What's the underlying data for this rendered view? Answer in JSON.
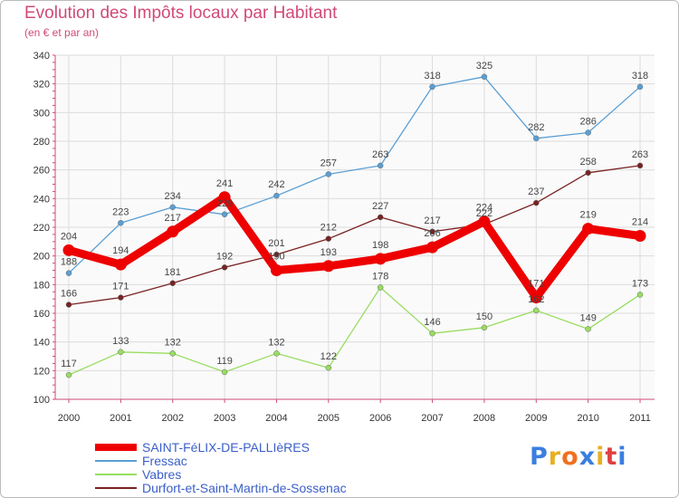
{
  "title": "Evolution des Impôts locaux par Habitant",
  "subtitle": "(en € et par an)",
  "chart_data": {
    "type": "line",
    "x": [
      "2000",
      "2001",
      "2002",
      "2003",
      "2004",
      "2005",
      "2006",
      "2007",
      "2008",
      "2009",
      "2010",
      "2011"
    ],
    "ylim": [
      100,
      340
    ],
    "yticks": [
      100,
      120,
      140,
      160,
      180,
      200,
      220,
      240,
      260,
      280,
      300,
      320,
      340
    ],
    "grid": true,
    "legend_position": "bottom-left",
    "series": [
      {
        "name": "SAINT-FéLIX-DE-PALLIèRES",
        "color": "#ee0000",
        "values": [
          204,
          194,
          217,
          241,
          190,
          193,
          198,
          206,
          224,
          171,
          219,
          214
        ]
      },
      {
        "name": "Fressac",
        "color": "#5a9fd4",
        "values": [
          188,
          223,
          234,
          229,
          242,
          257,
          263,
          318,
          325,
          282,
          286,
          318
        ]
      },
      {
        "name": "Vabres",
        "color": "#98dd60",
        "values": [
          117,
          133,
          132,
          119,
          132,
          122,
          178,
          146,
          150,
          162,
          149,
          173
        ]
      },
      {
        "name": "Durfort-et-Saint-Martin-de-Sossenac",
        "color": "#7a2222",
        "values": [
          166,
          171,
          181,
          192,
          201,
          212,
          227,
          217,
          222,
          237,
          258,
          263
        ]
      }
    ]
  },
  "logo": {
    "text": "Proxiti",
    "letter_colors": [
      "#3a7ee0",
      "#e8b020",
      "#f07020",
      "#3a7ee0",
      "#e8b020",
      "#e04040",
      "#3a7ee0"
    ]
  }
}
